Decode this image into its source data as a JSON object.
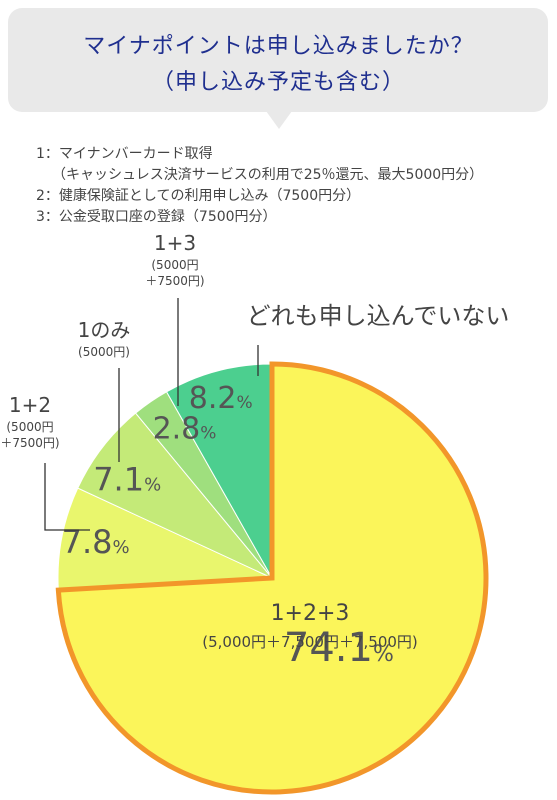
{
  "question": {
    "line1": "マイナポイントは申し込みましたか？",
    "line2": "（申し込み予定も含む）"
  },
  "notes": [
    "1：マイナンバーカード取得",
    "（キャッシュレス決済サービスの利用で25％還元、最大5000円分）",
    "2：健康保険証としての利用申し込み（7500円分）",
    "3：公金受取口座の登録（7500円分）"
  ],
  "chart_data": {
    "type": "pie",
    "slices": [
      {
        "label": "1+2+3",
        "detail": "(5,000円＋7,500円＋7,500円)",
        "value": 74.1,
        "value_text": "74.1",
        "unit": "%",
        "color": "#fbf55a"
      },
      {
        "label": "1+2",
        "detail": "(5000円\n＋7500円)",
        "value": 7.8,
        "value_text": "7.8",
        "unit": "%",
        "color": "#e9f66d"
      },
      {
        "label": "1のみ",
        "detail": "(5000円)",
        "value": 7.1,
        "value_text": "7.1",
        "unit": "%",
        "color": "#c4ea78"
      },
      {
        "label": "1+3",
        "detail": "(5000円\n＋7500円)",
        "value": 2.8,
        "value_text": "2.8",
        "unit": "%",
        "color": "#9fdf7e"
      },
      {
        "label": "どれも申し込んでいない",
        "detail": "",
        "value": 8.2,
        "value_text": "8.2",
        "unit": "%",
        "color": "#4ccf8f"
      }
    ],
    "highlight_color": "#f2962a"
  }
}
